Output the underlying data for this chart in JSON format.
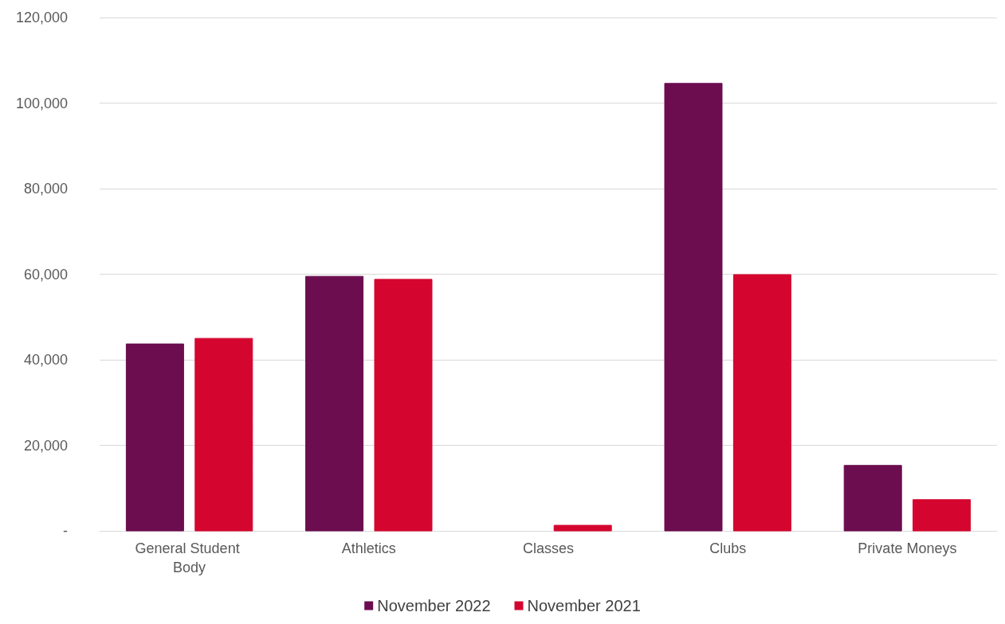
{
  "chart_data": {
    "type": "bar",
    "categories": [
      "General Student Body",
      "Athletics",
      "Classes",
      "Clubs",
      "Private Moneys"
    ],
    "series": [
      {
        "name": "November 2022",
        "color": "#6b0d4f",
        "values": [
          43700,
          59500,
          null,
          104600,
          15300
        ]
      },
      {
        "name": "November 2021",
        "color": "#d4062f",
        "values": [
          45000,
          58800,
          1300,
          59900,
          7300
        ]
      }
    ],
    "ylim": [
      0,
      120000
    ],
    "yticks": [
      {
        "value": 0,
        "label": "-"
      },
      {
        "value": 20000,
        "label": "20,000"
      },
      {
        "value": 40000,
        "label": "40,000"
      },
      {
        "value": 60000,
        "label": "60,000"
      },
      {
        "value": 80000,
        "label": "80,000"
      },
      {
        "value": 100000,
        "label": "100,000"
      },
      {
        "value": 120000,
        "label": "120,000"
      }
    ],
    "grid": "y",
    "legend": "bottom"
  }
}
